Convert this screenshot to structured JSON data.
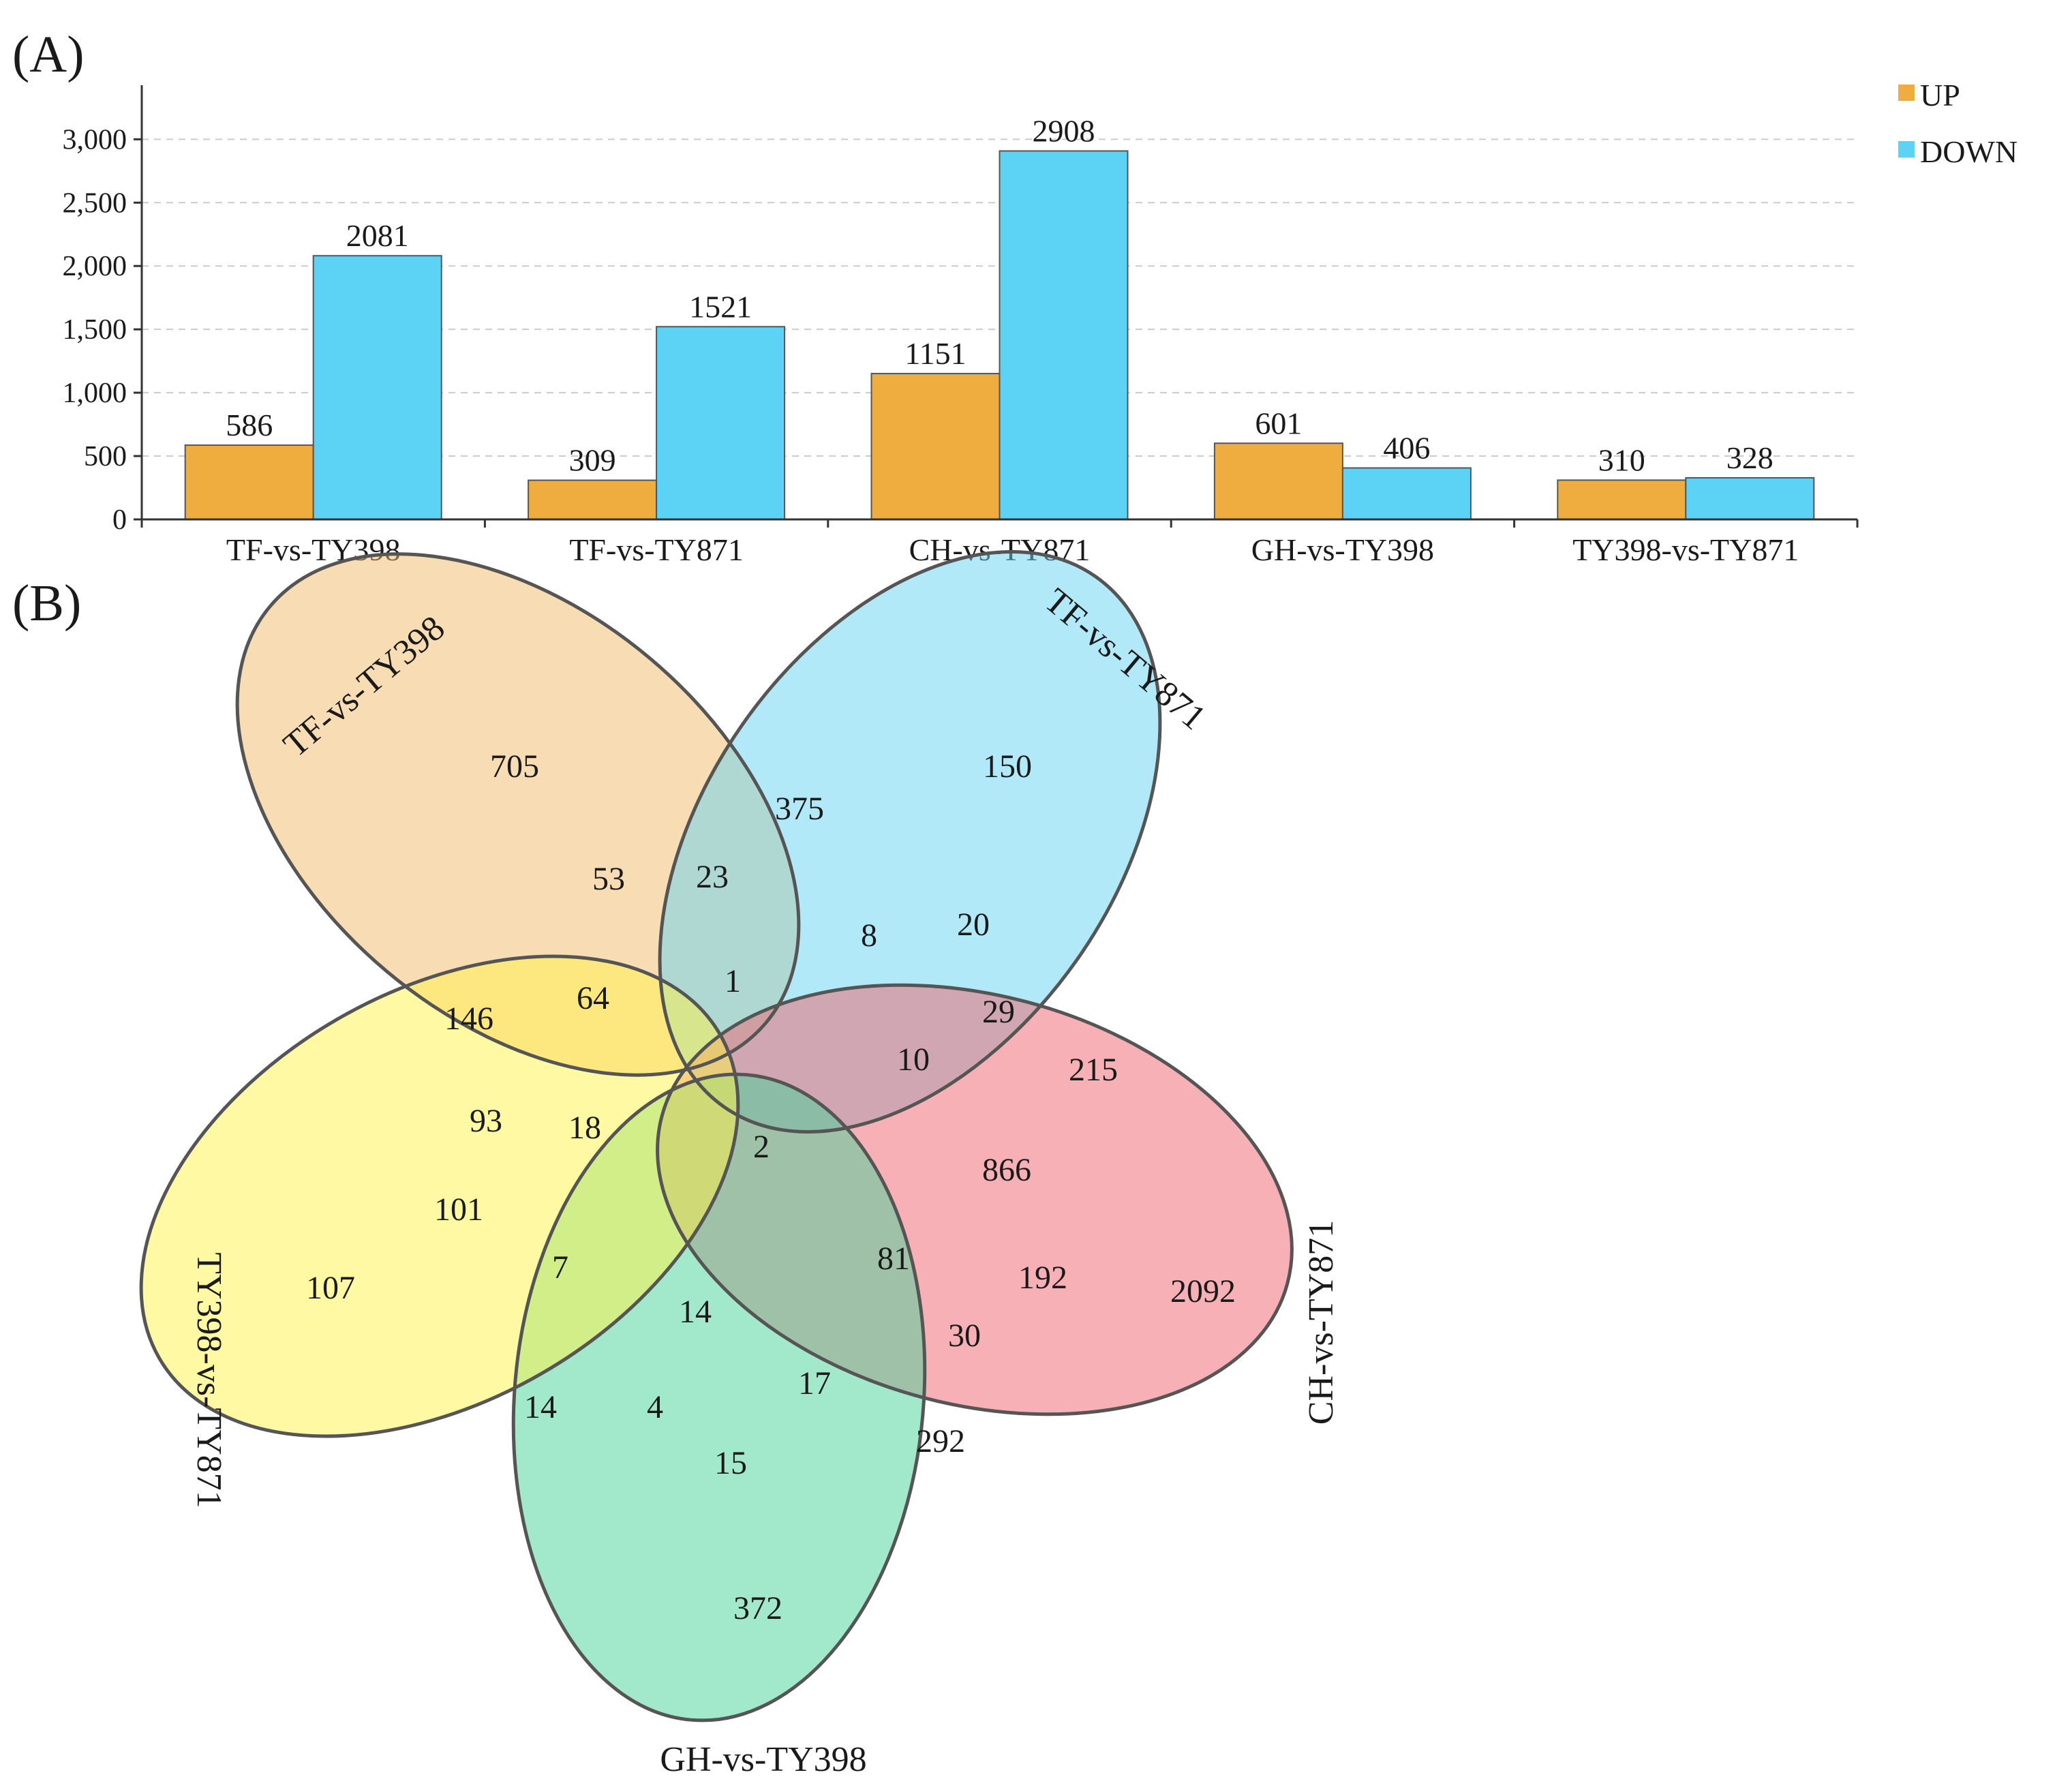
{
  "panels": {
    "a": "(A)",
    "b": "(B)"
  },
  "colors": {
    "up": "#F0AD3F",
    "down": "#5CD3F5",
    "grid": "#cccccc",
    "axis": "#333333",
    "venn_outline": "#555555",
    "venn_fills": [
      "#F2BA6A",
      "#66D3F2",
      "#F0636E",
      "#45D198",
      "#FFF347"
    ]
  },
  "chart_data": [
    {
      "type": "bar",
      "panel": "(A)",
      "categories": [
        "TF-vs-TY398",
        "TF-vs-TY871",
        "CH-vs-TY871",
        "GH-vs-TY398",
        "TY398-vs-TY871"
      ],
      "series": [
        {
          "name": "UP",
          "values": [
            586,
            309,
            1151,
            601,
            310
          ]
        },
        {
          "name": "DOWN",
          "values": [
            2081,
            1521,
            2908,
            406,
            328
          ]
        }
      ],
      "yticks": [
        0,
        500,
        1000,
        1500,
        2000,
        2500,
        3000
      ],
      "ytick_labels": [
        "0",
        "500",
        "1,000",
        "1,500",
        "2,000",
        "2,500",
        "3,000"
      ],
      "ylim": [
        0,
        3400
      ],
      "grid": "horizontal dashed",
      "legend": "top-right",
      "title": "",
      "xlabel": "",
      "ylabel": ""
    },
    {
      "type": "venn",
      "panel": "(B)",
      "sets": [
        "TF-vs-TY398",
        "TF-vs-TY871",
        "CH-vs-TY871",
        "GH-vs-TY398",
        "TY398-vs-TY871"
      ],
      "region_counts": [
        705,
        150,
        2092,
        372,
        107,
        375,
        23,
        53,
        20,
        8,
        1,
        64,
        146,
        29,
        10,
        215,
        93,
        18,
        2,
        866,
        101,
        7,
        14,
        81,
        192,
        30,
        17,
        14,
        4,
        15,
        292
      ]
    }
  ]
}
